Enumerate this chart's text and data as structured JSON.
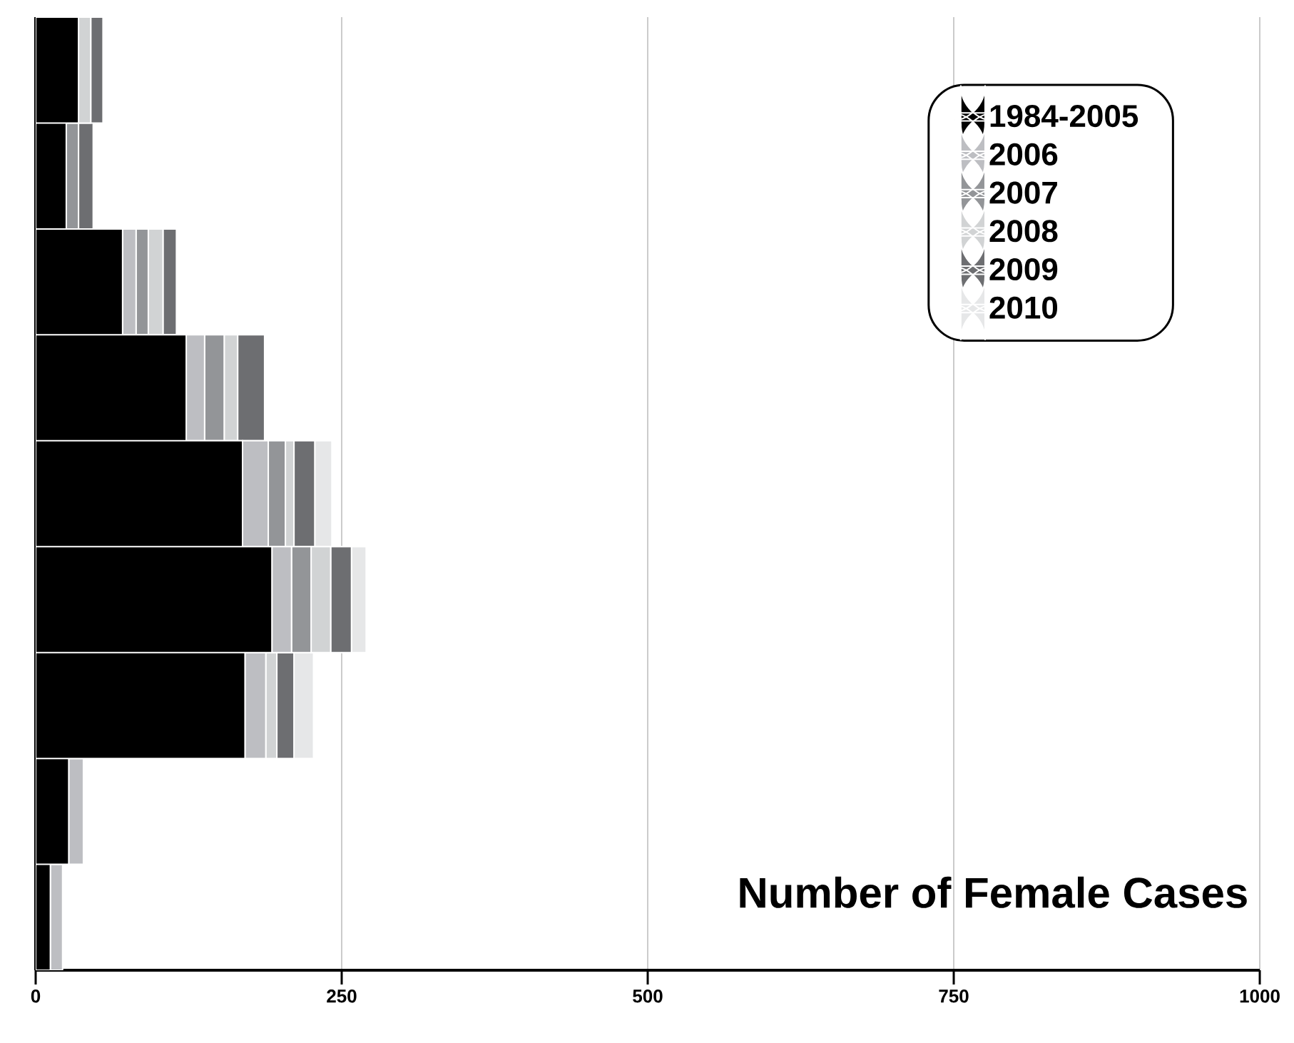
{
  "chart_data": {
    "type": "bar",
    "orientation": "horizontal",
    "stacked": true,
    "xlabel": "Number of Female Cases",
    "categories": [
      null,
      null,
      null,
      null,
      null,
      null,
      null,
      null,
      null
    ],
    "series": [
      {
        "name": "1984-2005",
        "color": "#000000",
        "values": [
          35,
          25,
          71,
          123,
          169,
          193,
          171,
          27,
          12
        ]
      },
      {
        "name": "2006",
        "color": "#bdbec2",
        "values": [
          0,
          0,
          11,
          15,
          21,
          16,
          17,
          12,
          10
        ]
      },
      {
        "name": "2007",
        "color": "#939598",
        "values": [
          0,
          10,
          10,
          16,
          14,
          16,
          0,
          0,
          0
        ]
      },
      {
        "name": "2008",
        "color": "#d1d3d4",
        "values": [
          10,
          0,
          12,
          11,
          7,
          16,
          9,
          0,
          0
        ]
      },
      {
        "name": "2009",
        "color": "#6d6e71",
        "values": [
          10,
          12,
          11,
          22,
          17,
          17,
          14,
          0,
          0
        ]
      },
      {
        "name": "2010",
        "color": "#e6e7e8",
        "values": [
          0,
          0,
          0,
          0,
          14,
          12,
          16,
          0,
          0
        ]
      }
    ],
    "xlim": [
      0,
      1000
    ],
    "xticks": [
      0,
      250,
      500,
      750,
      1000
    ],
    "grid": "x",
    "legend": "top right"
  }
}
